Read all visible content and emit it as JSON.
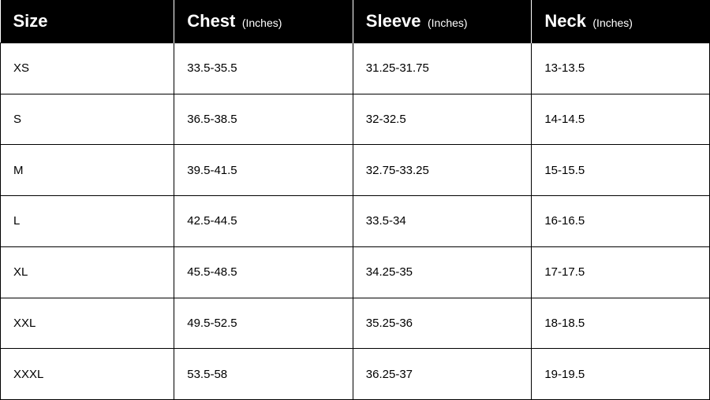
{
  "table": {
    "header_bg": "#000000",
    "header_fg": "#ffffff",
    "cell_fg": "#000000",
    "border_color": "#000000",
    "header_main_fontsize": 22,
    "header_unit_fontsize": 14,
    "cell_fontsize": 15,
    "columns": [
      {
        "label": "Size",
        "unit": ""
      },
      {
        "label": "Chest",
        "unit": "(Inches)"
      },
      {
        "label": "Sleeve",
        "unit": "(Inches)"
      },
      {
        "label": "Neck",
        "unit": "(Inches)"
      }
    ],
    "rows": [
      [
        "XS",
        "33.5-35.5",
        "31.25-31.75",
        "13-13.5"
      ],
      [
        "S",
        "36.5-38.5",
        "32-32.5",
        "14-14.5"
      ],
      [
        "M",
        "39.5-41.5",
        "32.75-33.25",
        "15-15.5"
      ],
      [
        "L",
        "42.5-44.5",
        "33.5-34",
        "16-16.5"
      ],
      [
        "XL",
        "45.5-48.5",
        "34.25-35",
        "17-17.5"
      ],
      [
        "XXL",
        "49.5-52.5",
        "35.25-36",
        "18-18.5"
      ],
      [
        "XXXL",
        "53.5-58",
        "36.25-37",
        "19-19.5"
      ]
    ]
  }
}
